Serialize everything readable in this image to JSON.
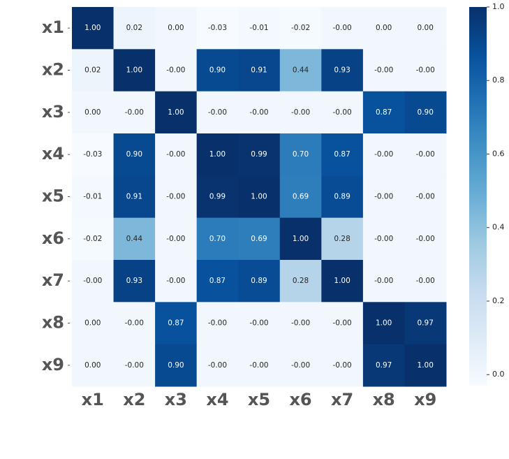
{
  "chart_data": {
    "type": "heatmap",
    "xcategories": [
      "x1",
      "x2",
      "x3",
      "x4",
      "x5",
      "x6",
      "x7",
      "x8",
      "x9"
    ],
    "ycategories": [
      "x1",
      "x2",
      "x3",
      "x4",
      "x5",
      "x6",
      "x7",
      "x8",
      "x9"
    ],
    "values": [
      [
        1.0,
        0.02,
        0.0,
        -0.03,
        -0.01,
        -0.02,
        -0.001,
        0.0,
        0.0
      ],
      [
        0.02,
        1.0,
        -0.001,
        0.9,
        0.91,
        0.44,
        0.93,
        -0.001,
        -0.001
      ],
      [
        0.0,
        -0.001,
        1.0,
        -0.001,
        -0.001,
        -0.001,
        -0.001,
        0.87,
        0.9
      ],
      [
        -0.03,
        0.9,
        -0.001,
        1.0,
        0.99,
        0.7,
        0.87,
        -0.001,
        -0.001
      ],
      [
        -0.01,
        0.91,
        -0.001,
        0.99,
        1.0,
        0.69,
        0.89,
        -0.001,
        -0.001
      ],
      [
        -0.02,
        0.44,
        -0.001,
        0.7,
        0.69,
        1.0,
        0.28,
        -0.001,
        -0.001
      ],
      [
        -0.001,
        0.93,
        -0.001,
        0.87,
        0.89,
        0.28,
        1.0,
        -0.001,
        -0.001
      ],
      [
        0.0,
        -0.001,
        0.87,
        -0.001,
        -0.001,
        -0.001,
        -0.001,
        1.0,
        0.97
      ],
      [
        0.0,
        -0.001,
        0.9,
        -0.001,
        -0.001,
        -0.001,
        -0.001,
        0.97,
        1.0
      ]
    ],
    "value_labels": [
      [
        "1.00",
        "0.02",
        "0.00",
        "-0.03",
        "-0.01",
        "-0.02",
        "-0.00",
        "0.00",
        "0.00"
      ],
      [
        "0.02",
        "1.00",
        "-0.00",
        "0.90",
        "0.91",
        "0.44",
        "0.93",
        "-0.00",
        "-0.00"
      ],
      [
        "0.00",
        "-0.00",
        "1.00",
        "-0.00",
        "-0.00",
        "-0.00",
        "-0.00",
        "0.87",
        "0.90"
      ],
      [
        "-0.03",
        "0.90",
        "-0.00",
        "1.00",
        "0.99",
        "0.70",
        "0.87",
        "-0.00",
        "-0.00"
      ],
      [
        "-0.01",
        "0.91",
        "-0.00",
        "0.99",
        "1.00",
        "0.69",
        "0.89",
        "-0.00",
        "-0.00"
      ],
      [
        "-0.02",
        "0.44",
        "-0.00",
        "0.70",
        "0.69",
        "1.00",
        "0.28",
        "-0.00",
        "-0.00"
      ],
      [
        "-0.00",
        "0.93",
        "-0.00",
        "0.87",
        "0.89",
        "0.28",
        "1.00",
        "-0.00",
        "-0.00"
      ],
      [
        "0.00",
        "-0.00",
        "0.87",
        "-0.00",
        "-0.00",
        "-0.00",
        "-0.00",
        "1.00",
        "0.97"
      ],
      [
        "0.00",
        "-0.00",
        "0.90",
        "-0.00",
        "-0.00",
        "-0.00",
        "-0.00",
        "0.97",
        "1.00"
      ]
    ],
    "colorscale": [
      "#f7fbff",
      "#deebf7",
      "#c6dbef",
      "#9ecae1",
      "#6baed6",
      "#4292c6",
      "#2171b5",
      "#08519c",
      "#08306b"
    ],
    "clim": [
      -0.03,
      1.0
    ],
    "cticks": [
      {
        "value": 0.0,
        "label": "0.0"
      },
      {
        "value": 0.2,
        "label": "0.2"
      },
      {
        "value": 0.4,
        "label": "0.4"
      },
      {
        "value": 0.6,
        "label": "0.6"
      },
      {
        "value": 0.8,
        "label": "0.8"
      },
      {
        "value": 1.0,
        "label": "1.0"
      }
    ]
  }
}
